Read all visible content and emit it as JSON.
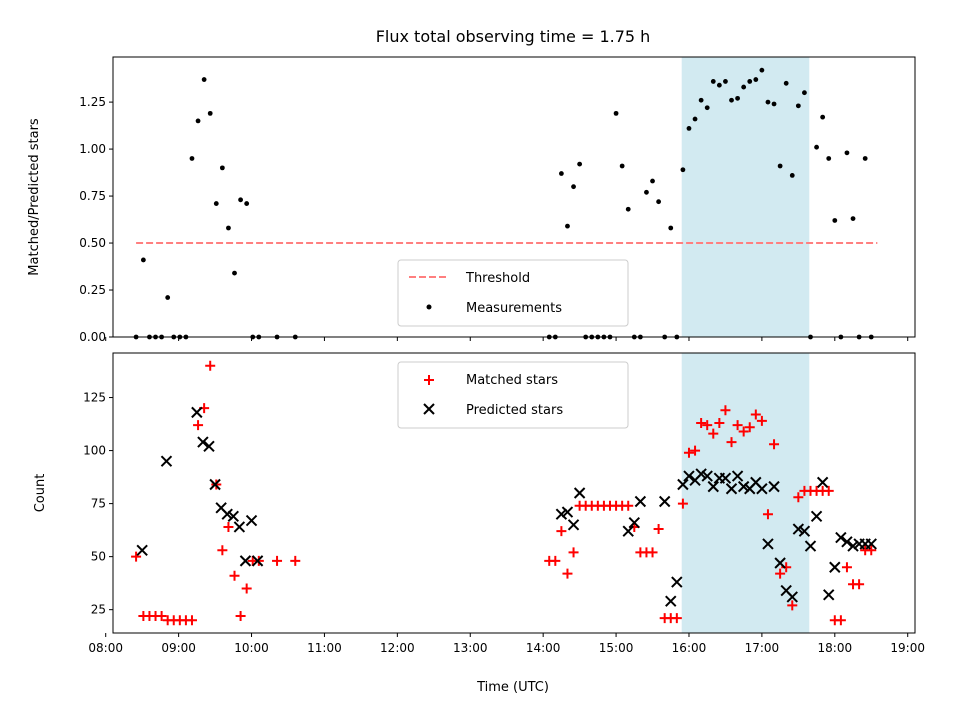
{
  "title": "Flux total observing time = 1.75 h",
  "colors": {
    "threshold": "#ff7f7f",
    "measurements": "#000000",
    "matched": "#ff0000",
    "predicted": "#000000",
    "shade": "#add8e6"
  },
  "chart_data": [
    {
      "type": "scatter",
      "ylabel": "Matched/Predicted stars",
      "xlim": [
        "08:06",
        "19:06"
      ],
      "ylim": [
        0,
        1.49
      ],
      "yticks": [
        0.0,
        0.25,
        0.5,
        0.75,
        1.0,
        1.25
      ],
      "ytick_labels": [
        "0.00",
        "0.25",
        "0.50",
        "0.75",
        "1.00",
        "1.25"
      ],
      "shaded_span": [
        "15:54",
        "17:39"
      ],
      "legend": {
        "placement": "lower-center",
        "threshold_label": "Threshold",
        "measurements_label": "Measurements"
      },
      "threshold": {
        "name": "Threshold",
        "x": [
          "08:25",
          "18:35"
        ],
        "y": 0.5
      },
      "series": [
        {
          "name": "Measurements",
          "x": [
            "08:25",
            "08:31",
            "08:36",
            "08:41",
            "08:46",
            "08:51",
            "08:56",
            "09:01",
            "09:06",
            "09:11",
            "09:16",
            "09:21",
            "09:26",
            "09:31",
            "09:36",
            "09:41",
            "09:46",
            "09:51",
            "09:56",
            "10:01",
            "10:06",
            "10:21",
            "10:36",
            "14:05",
            "14:10",
            "14:15",
            "14:20",
            "14:25",
            "14:30",
            "14:35",
            "14:40",
            "14:45",
            "14:50",
            "14:55",
            "15:00",
            "15:05",
            "15:10",
            "15:15",
            "15:20",
            "15:25",
            "15:30",
            "15:35",
            "15:40",
            "15:45",
            "15:50",
            "15:55",
            "16:00",
            "16:05",
            "16:10",
            "16:15",
            "16:20",
            "16:25",
            "16:30",
            "16:35",
            "16:40",
            "16:45",
            "16:50",
            "16:55",
            "17:00",
            "17:05",
            "17:10",
            "17:15",
            "17:20",
            "17:25",
            "17:30",
            "17:35",
            "17:40",
            "17:45",
            "17:50",
            "17:55",
            "18:00",
            "18:05",
            "18:10",
            "18:15",
            "18:20",
            "18:25",
            "18:30"
          ],
          "y": [
            0,
            0.41,
            0,
            0,
            0,
            0.21,
            0,
            0,
            0,
            0.95,
            1.15,
            1.37,
            1.19,
            0.71,
            0.9,
            0.58,
            0.34,
            0.73,
            0.71,
            0,
            0,
            0,
            0,
            0,
            0,
            0.87,
            0.59,
            0.8,
            0.92,
            0,
            0,
            0,
            0,
            0,
            1.19,
            0.91,
            0.68,
            0,
            0,
            0.77,
            0.83,
            0.72,
            0,
            0.58,
            0,
            0.89,
            1.11,
            1.16,
            1.26,
            1.22,
            1.36,
            1.34,
            1.36,
            1.26,
            1.27,
            1.33,
            1.36,
            1.37,
            1.42,
            1.25,
            1.24,
            0.91,
            1.35,
            0.86,
            1.23,
            1.3,
            0,
            1.01,
            1.17,
            0.95,
            0.62,
            0,
            0.98,
            0.63,
            0,
            0.95,
            0
          ]
        }
      ]
    },
    {
      "type": "scatter",
      "ylabel": "Count",
      "xlabel": "Time (UTC)",
      "xlim": [
        "08:06",
        "19:06"
      ],
      "ylim": [
        14,
        146
      ],
      "yticks": [
        25,
        50,
        75,
        100,
        125
      ],
      "ytick_labels": [
        "25",
        "50",
        "75",
        "100",
        "125"
      ],
      "xticks": [
        "08:00",
        "09:00",
        "10:00",
        "11:00",
        "12:00",
        "13:00",
        "14:00",
        "15:00",
        "16:00",
        "17:00",
        "18:00",
        "19:00"
      ],
      "shaded_span": [
        "15:54",
        "17:39"
      ],
      "legend": {
        "placement": "upper-center"
      },
      "series": [
        {
          "name": "Matched stars",
          "x": [
            "08:25",
            "08:31",
            "08:36",
            "08:41",
            "08:46",
            "08:51",
            "08:56",
            "09:01",
            "09:06",
            "09:11",
            "09:16",
            "09:21",
            "09:26",
            "09:31",
            "09:36",
            "09:41",
            "09:46",
            "09:51",
            "09:56",
            "10:01",
            "10:06",
            "10:21",
            "10:36",
            "14:05",
            "14:10",
            "14:15",
            "14:20",
            "14:25",
            "14:30",
            "14:35",
            "14:40",
            "14:45",
            "14:50",
            "14:55",
            "15:00",
            "15:05",
            "15:10",
            "15:15",
            "15:20",
            "15:25",
            "15:30",
            "15:35",
            "15:40",
            "15:45",
            "15:50",
            "15:55",
            "16:00",
            "16:05",
            "16:10",
            "16:15",
            "16:20",
            "16:25",
            "16:30",
            "16:35",
            "16:40",
            "16:45",
            "16:50",
            "16:55",
            "17:00",
            "17:05",
            "17:10",
            "17:15",
            "17:20",
            "17:25",
            "17:30",
            "17:35",
            "17:40",
            "17:45",
            "17:50",
            "17:55",
            "18:00",
            "18:05",
            "18:10",
            "18:15",
            "18:20",
            "18:25",
            "18:30"
          ],
          "y": [
            50,
            22,
            22,
            22,
            22,
            20,
            20,
            20,
            20,
            20,
            112,
            120,
            140,
            84,
            53,
            64,
            41,
            22,
            35,
            48,
            48,
            48,
            48,
            48,
            48,
            62,
            42,
            52,
            74,
            74,
            74,
            74,
            74,
            74,
            74,
            74,
            74,
            64,
            52,
            52,
            52,
            63,
            21,
            21,
            21,
            75,
            99,
            100,
            113,
            112,
            108,
            113,
            119,
            104,
            112,
            109,
            111,
            117,
            114,
            70,
            103,
            42,
            45,
            27,
            78,
            81,
            81,
            81,
            81,
            81,
            20,
            20,
            45,
            37,
            37,
            53,
            53
          ]
        },
        {
          "name": "Predicted stars",
          "x": [
            "08:30",
            "08:50",
            "09:15",
            "09:20",
            "09:25",
            "09:30",
            "09:35",
            "09:40",
            "09:45",
            "09:50",
            "09:55",
            "10:00",
            "10:05",
            "14:15",
            "14:20",
            "14:25",
            "14:30",
            "15:10",
            "15:15",
            "15:20",
            "15:40",
            "15:45",
            "15:50",
            "15:55",
            "16:00",
            "16:05",
            "16:10",
            "16:15",
            "16:20",
            "16:25",
            "16:30",
            "16:35",
            "16:40",
            "16:45",
            "16:50",
            "16:55",
            "17:00",
            "17:05",
            "17:10",
            "17:15",
            "17:20",
            "17:25",
            "17:30",
            "17:35",
            "17:40",
            "17:45",
            "17:50",
            "17:55",
            "18:00",
            "18:05",
            "18:10",
            "18:15",
            "18:20",
            "18:25",
            "18:30"
          ],
          "y": [
            53,
            95,
            118,
            104,
            102,
            84,
            73,
            70,
            69,
            64,
            48,
            67,
            48,
            70,
            71,
            65,
            80,
            62,
            66,
            76,
            76,
            29,
            38,
            84,
            88,
            86,
            89,
            88,
            83,
            87,
            87,
            82,
            88,
            83,
            82,
            85,
            82,
            56,
            83,
            47,
            34,
            31,
            63,
            62,
            55,
            69,
            85,
            32,
            45,
            59,
            57,
            55,
            56,
            56,
            56
          ]
        }
      ]
    }
  ]
}
